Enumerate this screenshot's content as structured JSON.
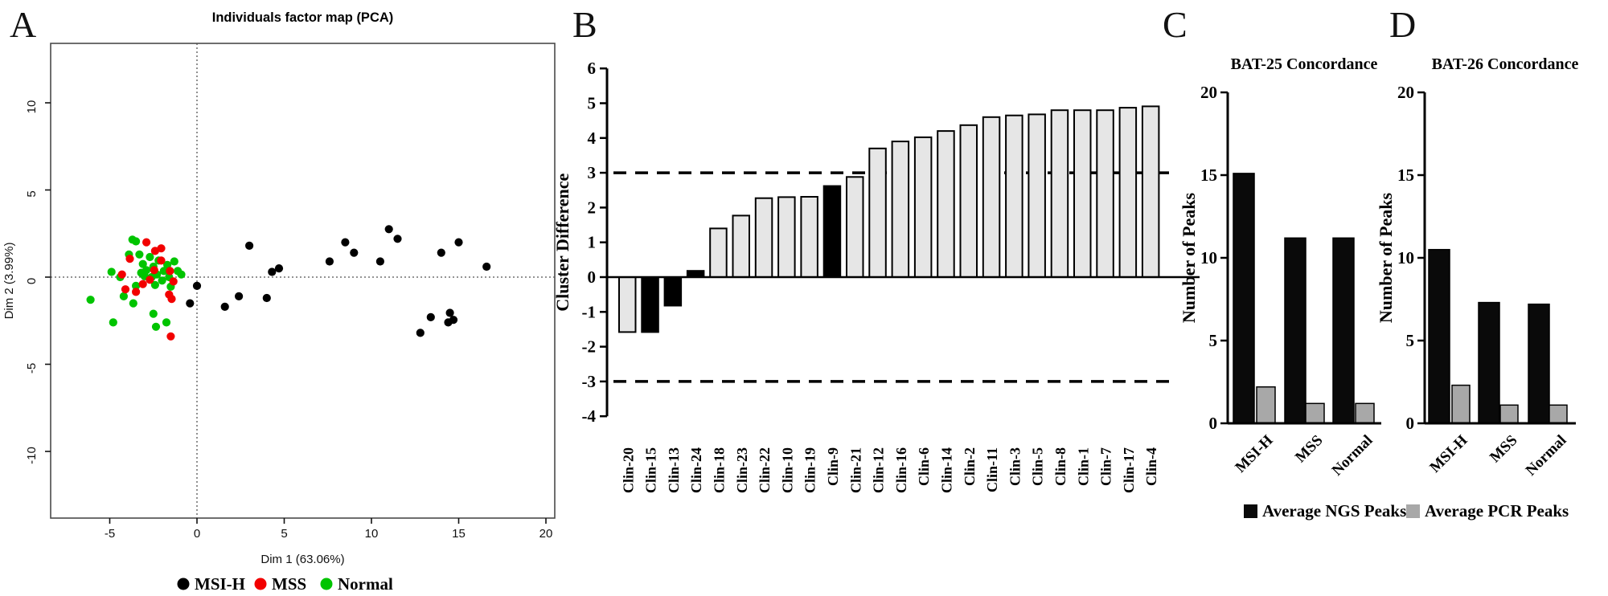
{
  "figure": {
    "panels": [
      {
        "letter": "A"
      },
      {
        "letter": "B"
      },
      {
        "letter": "C"
      },
      {
        "letter": "D"
      }
    ]
  },
  "colors": {
    "msih": "#000000",
    "mss": "#f20000",
    "normal": "#00c400",
    "bar_light": "#e6e6e6",
    "bar_black": "#000000",
    "pcr_gray": "#a8a8a8",
    "frame_gray": "#4a4a4a",
    "dash_gray": "#555555"
  },
  "chart_data": [
    {
      "panel": "A",
      "type": "scatter",
      "title": "Individuals factor map (PCA)",
      "xlabel": "Dim 1 (63.06%)",
      "ylabel": "Dim 2 (3.99%)",
      "xlim": [
        -8.4,
        20.5
      ],
      "ylim": [
        -13.4,
        13.4
      ],
      "xticks": [
        -5,
        0,
        5,
        10,
        15,
        20
      ],
      "yticks": [
        -10,
        -5,
        0,
        5,
        10
      ],
      "reference_lines": {
        "vertical_at_x": 0,
        "horizontal_at_y": 0,
        "style": "dotted"
      },
      "grid": false,
      "legend_position": "bottom",
      "series": [
        {
          "name": "MSI-H",
          "color": "#000000",
          "points": [
            [
              0.0,
              -0.5
            ],
            [
              -0.4,
              -1.5
            ],
            [
              1.6,
              -1.7
            ],
            [
              2.4,
              -1.1
            ],
            [
              4.0,
              -1.2
            ],
            [
              3.0,
              1.8
            ],
            [
              4.3,
              0.3
            ],
            [
              4.7,
              0.5
            ],
            [
              7.6,
              0.9
            ],
            [
              8.5,
              2.0
            ],
            [
              9.0,
              1.4
            ],
            [
              10.5,
              0.9
            ],
            [
              11.0,
              2.75
            ],
            [
              11.5,
              2.2
            ],
            [
              12.8,
              -3.2
            ],
            [
              13.4,
              -2.3
            ],
            [
              14.5,
              -2.05
            ],
            [
              14.4,
              -2.6
            ],
            [
              14.7,
              -2.45
            ],
            [
              14.0,
              1.4
            ],
            [
              15.0,
              2.0
            ],
            [
              16.6,
              0.6
            ]
          ]
        },
        {
          "name": "MSS",
          "color": "#f20000",
          "points": [
            [
              -3.85,
              1.05
            ],
            [
              -2.9,
              2.0
            ],
            [
              -2.4,
              1.5
            ],
            [
              -2.05,
              0.95
            ],
            [
              -4.3,
              0.15
            ],
            [
              -4.1,
              -0.7
            ],
            [
              -3.5,
              -0.85
            ],
            [
              -3.1,
              -0.4
            ],
            [
              -2.7,
              -0.15
            ],
            [
              -2.45,
              0.4
            ],
            [
              -1.55,
              0.35
            ],
            [
              -1.35,
              -0.25
            ],
            [
              -1.6,
              -1.0
            ],
            [
              -1.45,
              -1.25
            ],
            [
              -2.05,
              1.65
            ],
            [
              -1.5,
              -3.4
            ]
          ]
        },
        {
          "name": "Normal",
          "color": "#00c400",
          "points": [
            [
              -6.1,
              -1.3
            ],
            [
              -4.9,
              0.3
            ],
            [
              -4.8,
              -2.6
            ],
            [
              -4.4,
              0.0
            ],
            [
              -4.2,
              -1.1
            ],
            [
              -3.7,
              2.15
            ],
            [
              -3.5,
              2.05
            ],
            [
              -3.9,
              1.3
            ],
            [
              -3.3,
              1.3
            ],
            [
              -3.5,
              -0.5
            ],
            [
              -3.65,
              -1.5
            ],
            [
              -3.2,
              0.25
            ],
            [
              -3.1,
              0.75
            ],
            [
              -3.0,
              0.05
            ],
            [
              -2.9,
              0.4
            ],
            [
              -2.7,
              1.15
            ],
            [
              -2.6,
              0.0
            ],
            [
              -2.5,
              0.6
            ],
            [
              -2.4,
              -0.45
            ],
            [
              -2.5,
              -2.1
            ],
            [
              -2.3,
              0.15
            ],
            [
              -2.2,
              0.95
            ],
            [
              -2.0,
              -0.2
            ],
            [
              -1.9,
              0.35
            ],
            [
              -1.7,
              0.7
            ],
            [
              -1.6,
              0.0
            ],
            [
              -1.5,
              -0.55
            ],
            [
              -1.3,
              0.9
            ],
            [
              -1.1,
              0.35
            ],
            [
              -0.9,
              0.15
            ],
            [
              -2.35,
              -2.85
            ],
            [
              -1.75,
              -2.6
            ]
          ]
        }
      ]
    },
    {
      "panel": "B",
      "type": "bar",
      "ylabel": "Cluster Difference",
      "ylim": [
        -4,
        6
      ],
      "yticks": [
        -4,
        -3,
        -2,
        -1,
        0,
        1,
        2,
        3,
        4,
        5,
        6
      ],
      "threshold_lines": [
        3,
        -3
      ],
      "categories": [
        "Clin-20",
        "Clin-15",
        "Clin-13",
        "Clin-24",
        "Clin-18",
        "Clin-23",
        "Clin-22",
        "Clin-10",
        "Clin-19",
        "Clin-9",
        "Clin-21",
        "Clin-12",
        "Clin-16",
        "Clin-6",
        "Clin-14",
        "Clin-2",
        "Clin-11",
        "Clin-3",
        "Clin-5",
        "Clin-8",
        "Clin-1",
        "Clin-7",
        "Clin-17",
        "Clin-4"
      ],
      "values": [
        -1.58,
        -1.58,
        -0.82,
        0.18,
        1.4,
        1.77,
        2.27,
        2.3,
        2.31,
        2.62,
        2.88,
        3.7,
        3.9,
        4.02,
        4.2,
        4.37,
        4.6,
        4.65,
        4.68,
        4.8,
        4.8,
        4.8,
        4.87,
        4.91
      ],
      "bar_fills": [
        "gray",
        "black",
        "black",
        "black",
        "gray",
        "gray",
        "gray",
        "gray",
        "gray",
        "black",
        "gray",
        "gray",
        "gray",
        "gray",
        "gray",
        "gray",
        "gray",
        "gray",
        "gray",
        "gray",
        "gray",
        "gray",
        "gray",
        "gray"
      ]
    },
    {
      "panel": "C",
      "type": "bar",
      "title": "BAT-25 Concordance",
      "ylabel": "Number of Peaks",
      "ylim": [
        0,
        20
      ],
      "yticks": [
        0,
        5,
        10,
        15,
        20
      ],
      "categories": [
        "MSI-H",
        "MSS",
        "Normal"
      ],
      "series": [
        {
          "name": "Average NGS Peaks",
          "color": "#0a0a0a",
          "values": [
            15.1,
            11.2,
            11.2
          ]
        },
        {
          "name": "Average PCR Peaks",
          "color": "#a8a8a8",
          "values": [
            2.2,
            1.2,
            1.2
          ]
        }
      ],
      "legend": [
        {
          "label": "Average NGS Peaks",
          "color": "#0a0a0a"
        },
        {
          "label": "Average PCR Peaks",
          "color": "#a8a8a8"
        }
      ]
    },
    {
      "panel": "D",
      "type": "bar",
      "title": "BAT-26 Concordance",
      "ylabel": "Number of Peaks",
      "ylim": [
        0,
        20
      ],
      "yticks": [
        0,
        5,
        10,
        15,
        20
      ],
      "categories": [
        "MSI-H",
        "MSS",
        "Normal"
      ],
      "series": [
        {
          "name": "Average NGS Peaks",
          "color": "#0a0a0a",
          "values": [
            10.5,
            7.3,
            7.2
          ]
        },
        {
          "name": "Average PCR Peaks",
          "color": "#a8a8a8",
          "values": [
            2.3,
            1.1,
            1.1
          ]
        }
      ]
    }
  ]
}
